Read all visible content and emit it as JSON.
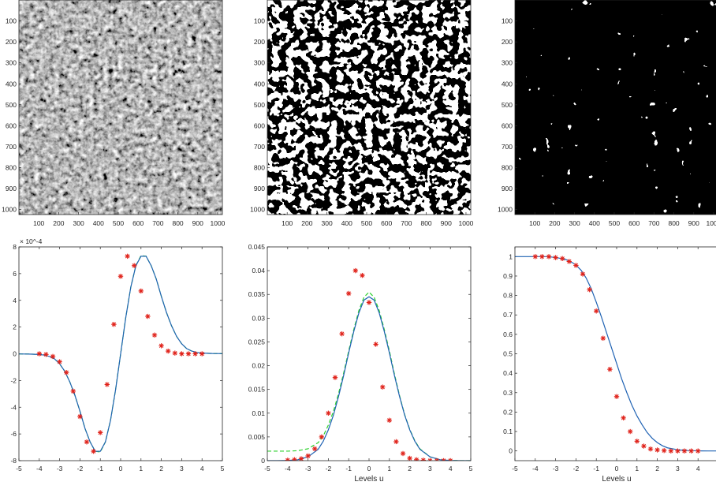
{
  "figure": {
    "images": [
      {
        "colormap": "gray",
        "threshold": null,
        "seed": 11
      },
      {
        "colormap": "binary",
        "threshold": 0.0,
        "seed": 11
      },
      {
        "colormap": "binary",
        "threshold": 1.0,
        "seed": 11
      }
    ],
    "image_ticks": {
      "x": [
        "100",
        "200",
        "300",
        "400",
        "500",
        "600",
        "700",
        "800",
        "900",
        "1000"
      ],
      "y": [
        "100",
        "200",
        "300",
        "400",
        "500",
        "600",
        "700",
        "800",
        "900",
        "1000"
      ]
    }
  },
  "colors": {
    "theory": "#1f62b3",
    "approx": "#2ed12e",
    "empirical": "#e0231b"
  },
  "chart_data": [
    {
      "type": "line",
      "xlabel": "",
      "ylabel": "",
      "xlim": [
        -5,
        5
      ],
      "ylim": [
        -8,
        8
      ],
      "y_exponent": "× 10^-4",
      "xticks": [
        "-5",
        "-4",
        "-3",
        "-2",
        "-1",
        "0",
        "1",
        "2",
        "3",
        "4",
        "5"
      ],
      "yticks": [
        "-8",
        "-6",
        "-4",
        "-2",
        "0",
        "2",
        "4",
        "6",
        "8"
      ],
      "series": [
        {
          "style": "solid",
          "color": "theory",
          "x": [
            -5,
            -4.5,
            -4,
            -3.75,
            -3.5,
            -3.25,
            -3,
            -2.75,
            -2.5,
            -2.25,
            -2,
            -1.75,
            -1.5,
            -1.25,
            -1,
            -0.75,
            -0.5,
            -0.25,
            0,
            0.25,
            0.5,
            0.75,
            1,
            1.25,
            1.5,
            1.75,
            2,
            2.25,
            2.5,
            2.75,
            3,
            3.25,
            3.5,
            3.75,
            4,
            4.5,
            5
          ],
          "y": [
            -0.01,
            -0.02,
            -0.05,
            -0.1,
            -0.2,
            -0.38,
            -0.75,
            -1.3,
            -2.1,
            -3.1,
            -4.3,
            -5.6,
            -6.6,
            -7.3,
            -7.3,
            -6.6,
            -5.0,
            -2.7,
            0.0,
            2.7,
            5.0,
            6.6,
            7.3,
            7.3,
            6.6,
            5.6,
            4.3,
            3.1,
            2.1,
            1.3,
            0.75,
            0.38,
            0.2,
            0.1,
            0.05,
            0.02,
            0.01
          ]
        },
        {
          "style": "dashed",
          "color": "approx",
          "x": [
            -5,
            -4.5,
            -4,
            -3.75,
            -3.5,
            -3.25,
            -3,
            -2.75,
            -2.5,
            -2.25,
            -2,
            -1.75,
            -1.5,
            -1.25,
            -1,
            -0.75,
            -0.5,
            -0.25,
            0,
            0.25,
            0.5,
            0.75,
            1,
            1.25,
            1.5,
            1.75,
            2,
            2.25,
            2.5,
            2.75,
            3,
            3.25,
            3.5,
            3.75,
            4,
            4.5,
            5
          ],
          "y": [
            -0.01,
            -0.02,
            -0.05,
            -0.1,
            -0.2,
            -0.38,
            -0.75,
            -1.3,
            -2.1,
            -3.1,
            -4.3,
            -5.6,
            -6.6,
            -7.3,
            -7.35,
            -6.6,
            -5.0,
            -2.7,
            0.0,
            2.7,
            5.0,
            6.6,
            7.35,
            7.3,
            6.6,
            5.6,
            4.3,
            3.1,
            2.1,
            1.3,
            0.75,
            0.38,
            0.2,
            0.1,
            0.05,
            0.02,
            0.01
          ]
        },
        {
          "style": "markers",
          "color": "empirical",
          "x": [
            -4,
            -3.667,
            -3.333,
            -3,
            -2.667,
            -2.333,
            -2,
            -1.667,
            -1.333,
            -1,
            -0.667,
            -0.333,
            0,
            0.333,
            0.667,
            1,
            1.333,
            1.667,
            2,
            2.333,
            2.667,
            3,
            3.333,
            3.667,
            4
          ],
          "y": [
            0.0,
            -0.05,
            -0.2,
            -0.6,
            -1.4,
            -2.8,
            -4.7,
            -6.6,
            -7.3,
            -5.9,
            -2.3,
            2.2,
            5.8,
            7.3,
            6.6,
            4.7,
            2.8,
            1.4,
            0.6,
            0.2,
            0.05,
            0.0,
            0.0,
            0.0,
            0.0
          ]
        }
      ]
    },
    {
      "type": "line",
      "xlabel": "Levels u",
      "ylabel": "",
      "xlim": [
        -5,
        5
      ],
      "ylim": [
        0,
        0.045
      ],
      "xticks": [
        "-5",
        "-4",
        "-3",
        "-2",
        "-1",
        "0",
        "1",
        "2",
        "3",
        "4",
        "5"
      ],
      "yticks": [
        "0",
        "0.005",
        "0.01",
        "0.015",
        "0.02",
        "0.025",
        "0.03",
        "0.035",
        "0.04",
        "0.045"
      ],
      "series": [
        {
          "style": "solid",
          "color": "theory",
          "x": [
            -5,
            -4.5,
            -4,
            -3.5,
            -3,
            -2.5,
            -2.25,
            -2,
            -1.75,
            -1.5,
            -1.25,
            -1,
            -0.75,
            -0.5,
            -0.25,
            0,
            0.25,
            0.5,
            0.75,
            1,
            1.25,
            1.5,
            1.75,
            2,
            2.25,
            2.5,
            3,
            3.5,
            4,
            4.5,
            5
          ],
          "y": [
            0,
            0,
            5e-05,
            0.0002,
            0.0008,
            0.0024,
            0.0041,
            0.0065,
            0.0096,
            0.0135,
            0.0179,
            0.0227,
            0.0272,
            0.0311,
            0.0338,
            0.0345,
            0.0338,
            0.0311,
            0.0272,
            0.0227,
            0.0179,
            0.0135,
            0.0096,
            0.0065,
            0.0041,
            0.0024,
            0.0008,
            0.0002,
            5e-05,
            0,
            0
          ]
        },
        {
          "style": "dashed",
          "color": "approx",
          "x": [
            -5,
            -4.5,
            -4,
            -3.5,
            -3,
            -2.5,
            -2.25,
            -2,
            -1.75,
            -1.5,
            -1.25,
            -1,
            -0.75,
            -0.5,
            -0.25,
            0,
            0.25,
            0.5,
            0.75,
            1,
            1.25,
            1.5,
            1.75,
            2,
            2.25,
            2.5,
            3,
            3.5,
            4,
            4.5,
            5
          ],
          "y": [
            0.002,
            0.002,
            0.002,
            0.0021,
            0.0025,
            0.0038,
            0.0052,
            0.0075,
            0.0104,
            0.0141,
            0.0184,
            0.0231,
            0.0276,
            0.0316,
            0.0344,
            0.0355,
            0.0344,
            0.0316,
            0.0276,
            0.0231,
            0.0182,
            0.0137,
            0.0097,
            0.0066,
            0.0042,
            0.0025,
            0.0008,
            0.0002,
            5e-05,
            0,
            0
          ]
        },
        {
          "style": "markers",
          "color": "empirical",
          "x": [
            -4,
            -3.667,
            -3.333,
            -3,
            -2.667,
            -2.333,
            -2,
            -1.667,
            -1.333,
            -1,
            -0.667,
            -0.333,
            0,
            0.333,
            0.667,
            1,
            1.333,
            1.667,
            2,
            2.333,
            2.667,
            3,
            3.333,
            3.667,
            4
          ],
          "y": [
            0.0001,
            0.0002,
            0.0004,
            0.001,
            0.0025,
            0.005,
            0.01,
            0.0175,
            0.0267,
            0.0352,
            0.04,
            0.039,
            0.0333,
            0.0245,
            0.0155,
            0.0085,
            0.004,
            0.0015,
            0.0005,
            0.0002,
            0.0001,
            0,
            0,
            0,
            0
          ]
        }
      ]
    },
    {
      "type": "line",
      "xlabel": "Levels u",
      "ylabel": "",
      "xlim": [
        -5,
        5
      ],
      "ylim": [
        -0.05,
        1.05
      ],
      "xticks": [
        "-5",
        "-4",
        "-3",
        "-2",
        "-1",
        "0",
        "1",
        "2",
        "3",
        "4",
        "5"
      ],
      "yticks": [
        "0",
        "0.1",
        "0.2",
        "0.3",
        "0.4",
        "0.5",
        "0.6",
        "0.7",
        "0.8",
        "0.9",
        "1"
      ],
      "series": [
        {
          "style": "solid",
          "color": "theory",
          "x": [
            -5,
            -4.5,
            -4,
            -3.5,
            -3,
            -2.5,
            -2.25,
            -2,
            -1.75,
            -1.5,
            -1.25,
            -1,
            -0.75,
            -0.5,
            -0.25,
            0,
            0.25,
            0.5,
            0.75,
            1,
            1.25,
            1.5,
            1.75,
            2,
            2.25,
            2.5,
            3,
            3.5,
            4,
            4.5,
            5
          ],
          "y": [
            1,
            1,
            1,
            1,
            0.996,
            0.985,
            0.974,
            0.957,
            0.93,
            0.89,
            0.835,
            0.765,
            0.69,
            0.61,
            0.53,
            0.45,
            0.37,
            0.3,
            0.235,
            0.18,
            0.135,
            0.095,
            0.065,
            0.043,
            0.027,
            0.016,
            0.006,
            0.002,
            0.0005,
            0,
            0
          ]
        },
        {
          "style": "markers",
          "color": "empirical",
          "x": [
            -4,
            -3.667,
            -3.333,
            -3,
            -2.667,
            -2.333,
            -2,
            -1.667,
            -1.333,
            -1,
            -0.667,
            -0.333,
            0,
            0.333,
            0.667,
            1,
            1.333,
            1.667,
            2,
            2.333,
            2.667,
            3,
            3.333,
            3.667,
            4
          ],
          "y": [
            1,
            1,
            1,
            0.995,
            0.99,
            0.975,
            0.955,
            0.91,
            0.83,
            0.72,
            0.58,
            0.42,
            0.28,
            0.17,
            0.1,
            0.05,
            0.025,
            0.01,
            0.005,
            0.002,
            0,
            0,
            0,
            0,
            0
          ]
        }
      ]
    }
  ]
}
